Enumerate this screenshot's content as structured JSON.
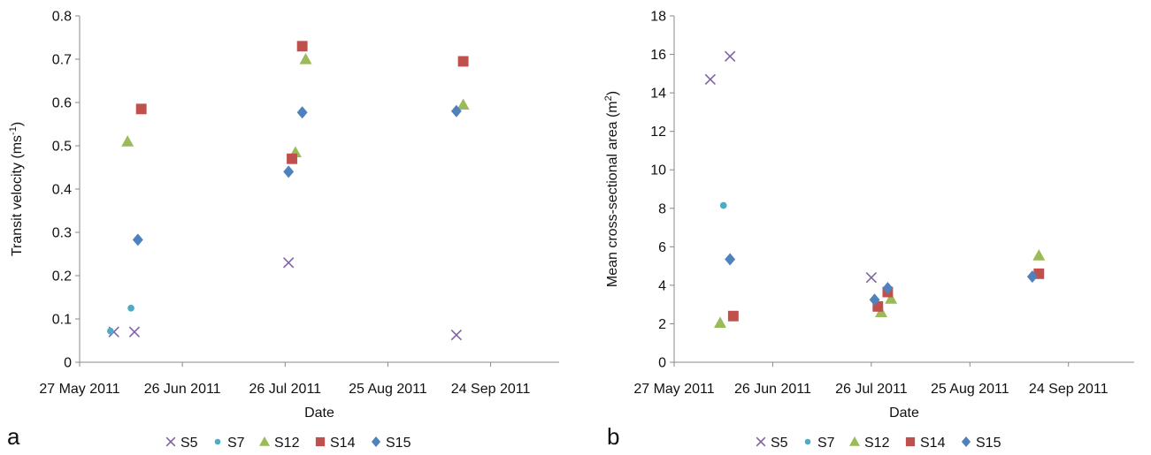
{
  "series_styles": {
    "S5": {
      "marker": "cross",
      "color": "#8064A2"
    },
    "S7": {
      "marker": "circle",
      "color": "#4BACC6"
    },
    "S12": {
      "marker": "triangle",
      "color": "#9BBB59"
    },
    "S14": {
      "marker": "square",
      "color": "#C0504D"
    },
    "S15": {
      "marker": "diamond",
      "color": "#4F81BD"
    }
  },
  "chart_data": [
    {
      "type": "scatter",
      "panel_label": "a",
      "xlabel": "Date",
      "ylabel": {
        "base": "Transit velocity  (ms",
        "sup": "-1",
        "tail": ")"
      },
      "xlim": [
        "2011-05-27",
        "2011-10-14"
      ],
      "ylim": [
        0,
        0.8
      ],
      "yticks": [
        "0",
        "0.1",
        "0.2",
        "0.3",
        "0.4",
        "0.5",
        "0.6",
        "0.7",
        "0.8"
      ],
      "xticks": [
        {
          "date": "2011-05-27",
          "label": "27 May 2011"
        },
        {
          "date": "2011-06-26",
          "label": "26 Jun 2011"
        },
        {
          "date": "2011-07-26",
          "label": "26 Jul 2011"
        },
        {
          "date": "2011-08-25",
          "label": "25 Aug 2011"
        },
        {
          "date": "2011-09-24",
          "label": "24 Sep 2011"
        }
      ],
      "grid": false,
      "legend_position": "bottom",
      "series": [
        {
          "name": "S5",
          "x": [
            "2011-06-06",
            "2011-06-12",
            "2011-07-27",
            "2011-09-14"
          ],
          "y": [
            0.07,
            0.07,
            0.23,
            0.063
          ]
        },
        {
          "name": "S7",
          "x": [
            "2011-06-05",
            "2011-06-11"
          ],
          "y": [
            0.072,
            0.125
          ]
        },
        {
          "name": "S12",
          "x": [
            "2011-06-10",
            "2011-07-29",
            "2011-08-01",
            "2011-09-16"
          ],
          "y": [
            0.51,
            0.485,
            0.7,
            0.595
          ]
        },
        {
          "name": "S14",
          "x": [
            "2011-06-14",
            "2011-07-28",
            "2011-07-31",
            "2011-09-16"
          ],
          "y": [
            0.585,
            0.47,
            0.73,
            0.695
          ]
        },
        {
          "name": "S15",
          "x": [
            "2011-06-13",
            "2011-07-27",
            "2011-07-31",
            "2011-09-14"
          ],
          "y": [
            0.283,
            0.44,
            0.577,
            0.58
          ]
        }
      ]
    },
    {
      "type": "scatter",
      "panel_label": "b",
      "xlabel": "Date",
      "ylabel": {
        "base": "Mean cross-sectional area (m",
        "sup": "2",
        "tail": ")"
      },
      "xlim": [
        "2011-05-27",
        "2011-10-14"
      ],
      "ylim": [
        0,
        18
      ],
      "yticks": [
        "0",
        "2",
        "4",
        "6",
        "8",
        "10",
        "12",
        "14",
        "16",
        "18"
      ],
      "xticks": [
        {
          "date": "2011-05-27",
          "label": "27 May 2011"
        },
        {
          "date": "2011-06-26",
          "label": "26 Jun 2011"
        },
        {
          "date": "2011-07-26",
          "label": "26 Jul 2011"
        },
        {
          "date": "2011-08-25",
          "label": "25 Aug 2011"
        },
        {
          "date": "2011-09-24",
          "label": "24 Sep 2011"
        }
      ],
      "grid": false,
      "legend_position": "bottom",
      "series": [
        {
          "name": "S5",
          "x": [
            "2011-06-07",
            "2011-06-13",
            "2011-07-26"
          ],
          "y": [
            14.7,
            15.9,
            4.4
          ]
        },
        {
          "name": "S7",
          "x": [
            "2011-06-11"
          ],
          "y": [
            8.15
          ]
        },
        {
          "name": "S12",
          "x": [
            "2011-06-10",
            "2011-07-29",
            "2011-08-01",
            "2011-09-15"
          ],
          "y": [
            2.05,
            2.6,
            3.3,
            5.55
          ]
        },
        {
          "name": "S14",
          "x": [
            "2011-06-14",
            "2011-07-28",
            "2011-07-31",
            "2011-09-15"
          ],
          "y": [
            2.4,
            2.9,
            3.65,
            4.6
          ]
        },
        {
          "name": "S15",
          "x": [
            "2011-06-13",
            "2011-07-27",
            "2011-07-31",
            "2011-09-13"
          ],
          "y": [
            5.35,
            3.25,
            3.85,
            4.45
          ]
        }
      ]
    }
  ]
}
